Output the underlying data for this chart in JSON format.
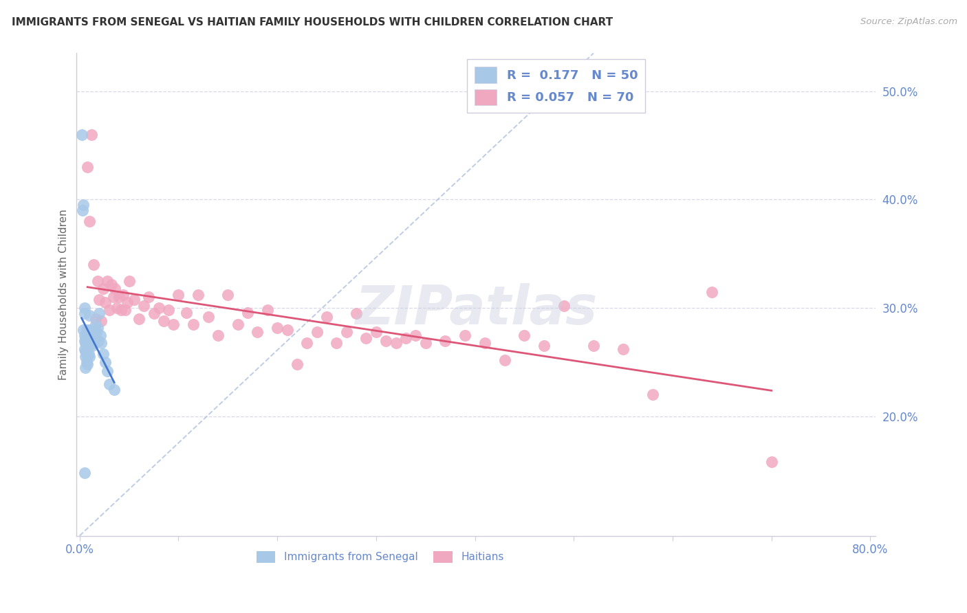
{
  "title": "IMMIGRANTS FROM SENEGAL VS HAITIAN FAMILY HOUSEHOLDS WITH CHILDREN CORRELATION CHART",
  "source": "Source: ZipAtlas.com",
  "ylabel": "Family Households with Children",
  "watermark": "ZIPatlas",
  "xlim": [
    -0.003,
    0.805
  ],
  "ylim": [
    0.09,
    0.535
  ],
  "xtick_positions": [
    0.0,
    0.1,
    0.2,
    0.3,
    0.4,
    0.5,
    0.6,
    0.7,
    0.8
  ],
  "xtick_labels": [
    "0.0%",
    "",
    "",
    "",
    "",
    "",
    "",
    "",
    "80.0%"
  ],
  "ytick_right_vals": [
    0.2,
    0.3,
    0.4,
    0.5
  ],
  "ytick_right_labels": [
    "20.0%",
    "30.0%",
    "40.0%",
    "50.0%"
  ],
  "legend1_label": "Immigrants from Senegal",
  "legend2_label": "Haitians",
  "R1": "0.177",
  "N1": "50",
  "R2": "0.057",
  "N2": "70",
  "color_senegal": "#a8c8e8",
  "color_haitian": "#f0a8c0",
  "color_line_senegal": "#4477cc",
  "color_line_haitian": "#dd5577",
  "color_diag": "#aabbdd",
  "color_grid": "#d8d8e8",
  "color_axis_text": "#6688cc",
  "color_title": "#333333",
  "color_source": "#aaaaaa",
  "color_watermark": "#ccd0e0",
  "color_spine": "#ccccdd",
  "senegal_x": [
    0.002,
    0.003,
    0.004,
    0.004,
    0.005,
    0.005,
    0.005,
    0.005,
    0.005,
    0.005,
    0.006,
    0.006,
    0.006,
    0.006,
    0.006,
    0.007,
    0.007,
    0.007,
    0.007,
    0.007,
    0.008,
    0.008,
    0.008,
    0.008,
    0.009,
    0.009,
    0.009,
    0.01,
    0.01,
    0.01,
    0.01,
    0.011,
    0.011,
    0.012,
    0.013,
    0.013,
    0.014,
    0.015,
    0.016,
    0.017,
    0.018,
    0.019,
    0.02,
    0.021,
    0.022,
    0.024,
    0.026,
    0.028,
    0.03,
    0.035
  ],
  "senegal_y": [
    0.46,
    0.39,
    0.395,
    0.28,
    0.3,
    0.295,
    0.275,
    0.27,
    0.262,
    0.148,
    0.272,
    0.268,
    0.26,
    0.255,
    0.245,
    0.28,
    0.272,
    0.266,
    0.258,
    0.25,
    0.27,
    0.263,
    0.255,
    0.248,
    0.272,
    0.265,
    0.258,
    0.293,
    0.28,
    0.268,
    0.255,
    0.28,
    0.268,
    0.278,
    0.272,
    0.265,
    0.268,
    0.272,
    0.285,
    0.278,
    0.282,
    0.27,
    0.295,
    0.275,
    0.268,
    0.258,
    0.25,
    0.242,
    0.23,
    0.225
  ],
  "haitian_x": [
    0.008,
    0.01,
    0.012,
    0.014,
    0.016,
    0.018,
    0.02,
    0.022,
    0.024,
    0.026,
    0.028,
    0.03,
    0.032,
    0.034,
    0.036,
    0.038,
    0.04,
    0.042,
    0.044,
    0.046,
    0.048,
    0.05,
    0.055,
    0.06,
    0.065,
    0.07,
    0.075,
    0.08,
    0.085,
    0.09,
    0.095,
    0.1,
    0.108,
    0.115,
    0.12,
    0.13,
    0.14,
    0.15,
    0.16,
    0.17,
    0.18,
    0.19,
    0.2,
    0.21,
    0.22,
    0.23,
    0.24,
    0.25,
    0.26,
    0.27,
    0.28,
    0.29,
    0.3,
    0.31,
    0.32,
    0.33,
    0.34,
    0.35,
    0.37,
    0.39,
    0.41,
    0.43,
    0.45,
    0.47,
    0.49,
    0.52,
    0.55,
    0.58,
    0.64,
    0.7
  ],
  "haitian_y": [
    0.43,
    0.38,
    0.46,
    0.34,
    0.29,
    0.325,
    0.308,
    0.288,
    0.318,
    0.305,
    0.325,
    0.298,
    0.322,
    0.31,
    0.318,
    0.3,
    0.31,
    0.298,
    0.312,
    0.298,
    0.305,
    0.325,
    0.308,
    0.29,
    0.302,
    0.31,
    0.295,
    0.3,
    0.288,
    0.298,
    0.285,
    0.312,
    0.296,
    0.285,
    0.312,
    0.292,
    0.275,
    0.312,
    0.285,
    0.296,
    0.278,
    0.298,
    0.282,
    0.28,
    0.248,
    0.268,
    0.278,
    0.292,
    0.268,
    0.278,
    0.295,
    0.272,
    0.278,
    0.27,
    0.268,
    0.272,
    0.275,
    0.268,
    0.27,
    0.275,
    0.268,
    0.252,
    0.275,
    0.265,
    0.302,
    0.265,
    0.262,
    0.22,
    0.315,
    0.158
  ]
}
